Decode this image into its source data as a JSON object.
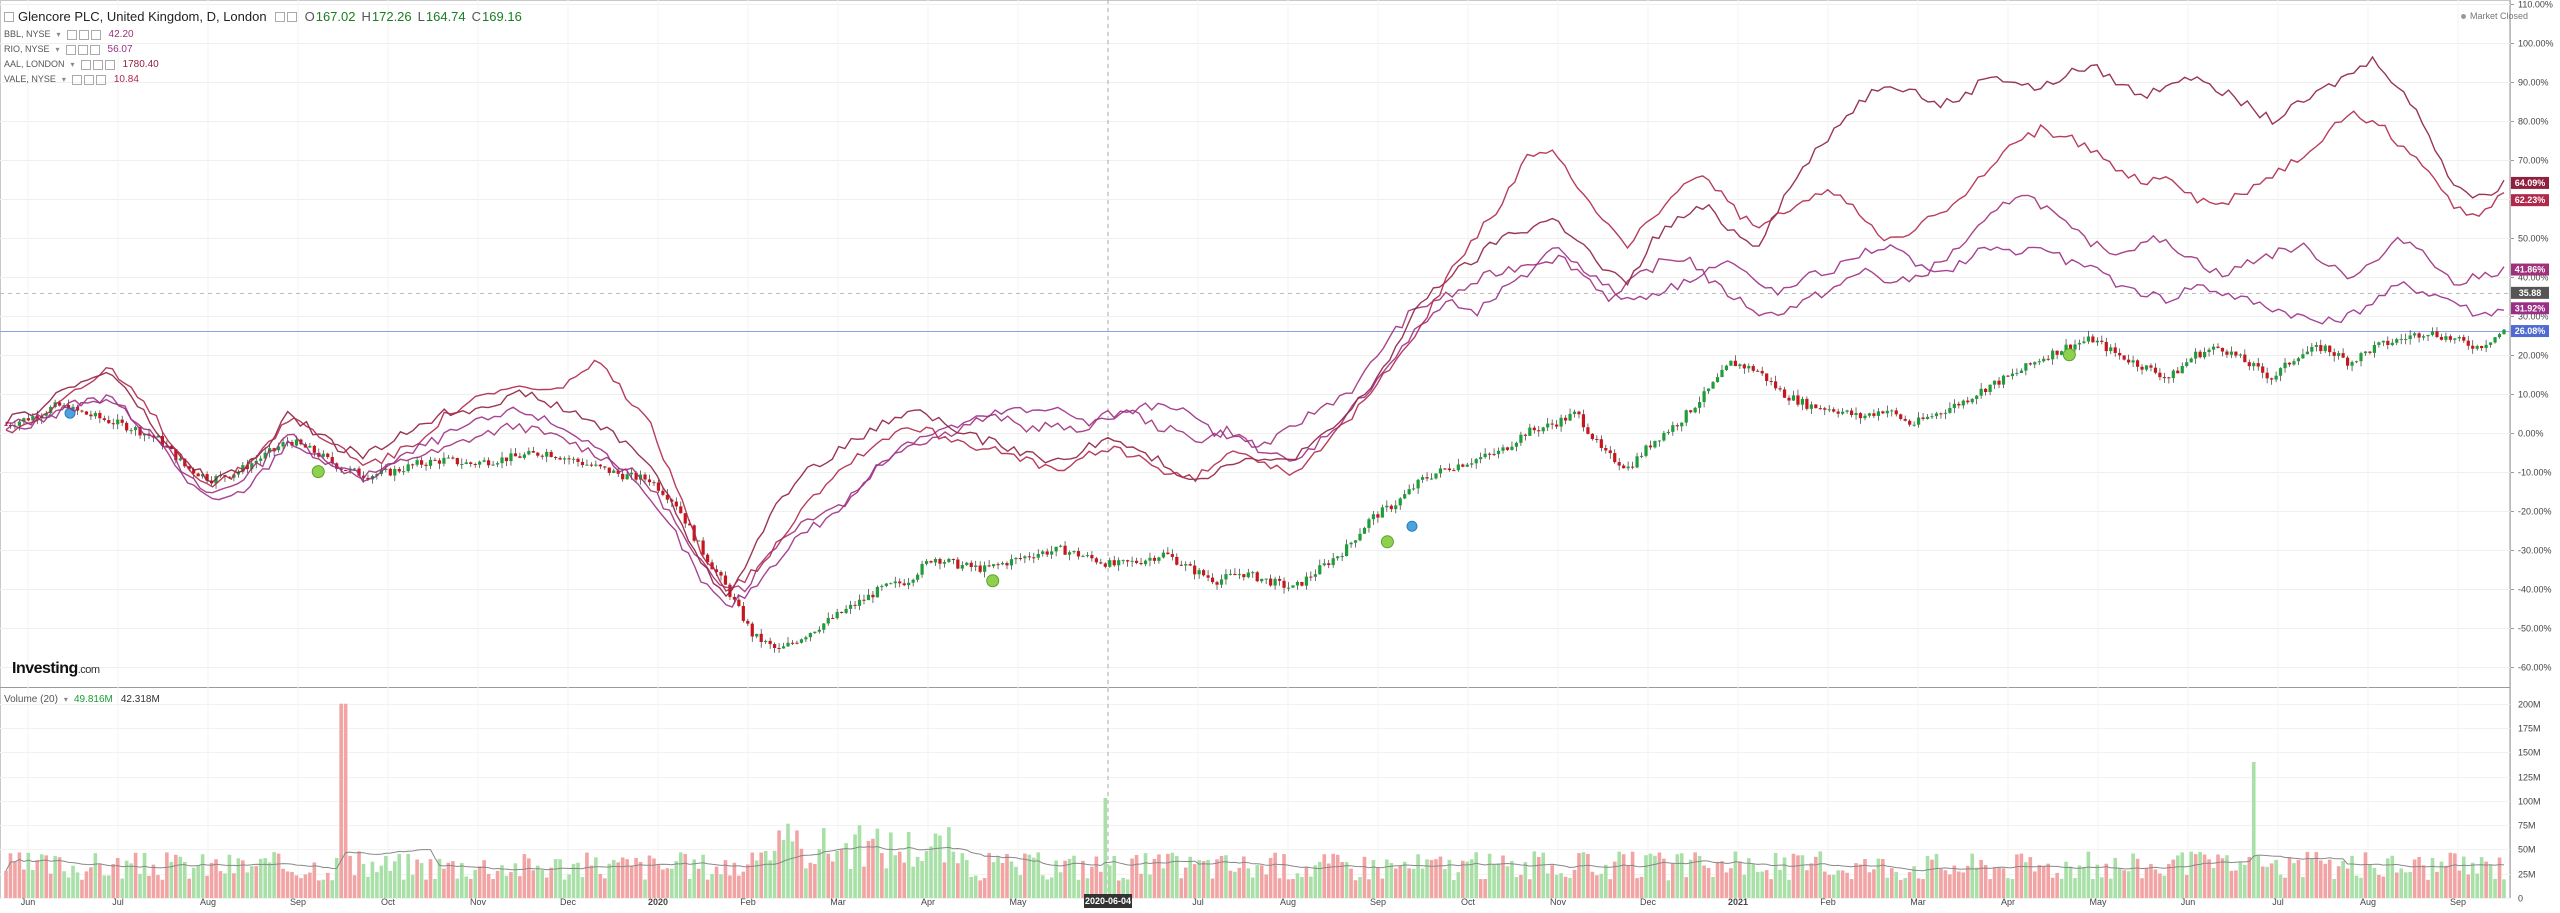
{
  "header": {
    "main_symbol": "Glencore PLC, United Kingdom, D, London",
    "ohlc": [
      {
        "k": "O",
        "v": "167.02"
      },
      {
        "k": "H",
        "v": "172.26"
      },
      {
        "k": "L",
        "v": "164.74"
      },
      {
        "k": "C",
        "v": "169.16"
      }
    ],
    "comparisons": [
      {
        "name": "BBL, NYSE",
        "value": "42.20",
        "color": "#a0307a"
      },
      {
        "name": "RIO, NYSE",
        "value": "56.07",
        "color": "#9b2f88"
      },
      {
        "name": "AAL, LONDON",
        "value": "1780.40",
        "color": "#8e2040"
      },
      {
        "name": "VALE, NYSE",
        "value": "10.84",
        "color": "#b0284a"
      }
    ],
    "market_status": "Market Closed",
    "logo_text": "Investing",
    "logo_suffix": ".com"
  },
  "volume_legend": {
    "name": "Volume (20)",
    "value1": "49.816M",
    "value2": "42.318M"
  },
  "chart_data": [
    {
      "type": "line",
      "subtype": "candlestick-with-comparisons",
      "title": "Glencore PLC, United Kingdom, D, London",
      "x_axis_labels": [
        "Jun",
        "Jul",
        "Aug",
        "Sep",
        "Oct",
        "Nov",
        "Dec",
        "2020",
        "Feb",
        "Mar",
        "Apr",
        "May",
        "2020-06-04",
        "Jul",
        "Aug",
        "Sep",
        "Oct",
        "Nov",
        "Dec",
        "2021",
        "Feb",
        "Mar",
        "Apr",
        "May",
        "Jun",
        "Jul",
        "Aug",
        "Sep"
      ],
      "crosshair_label": "2020-06-04",
      "y_axis_ticks": [
        "110.00%",
        "100.00%",
        "90.00%",
        "80.00%",
        "70.00%",
        "60.00%",
        "50.00%",
        "40.00%",
        "30.00%",
        "20.00%",
        "10.00%",
        "0.00%",
        "-10.00%",
        "-20.00%",
        "-30.00%",
        "-40.00%",
        "-50.00%",
        "-60.00%"
      ],
      "y_range": [
        -65,
        110
      ],
      "y_scale": "percent",
      "price_badges": [
        {
          "label": "64.09%",
          "color": "#8e2040",
          "value": 64.09
        },
        {
          "label": "62.23%",
          "color": "#b0284a",
          "value": 62.23
        },
        {
          "label": "41.86%",
          "color": "#a0307a",
          "value": 41.86
        },
        {
          "label": "35.88",
          "color": "#555555",
          "value": 35.88
        },
        {
          "label": "31.92%",
          "color": "#9b2f88",
          "value": 31.92
        },
        {
          "label": "26.08%",
          "color": "#4f6bd0",
          "value": 26.08
        }
      ],
      "series": [
        {
          "name": "Glencore PLC",
          "kind": "candles",
          "values": [
            2,
            4,
            7,
            5,
            3,
            1,
            -2,
            -9,
            -12,
            -10,
            -6,
            -2,
            -5,
            -9,
            -11,
            -10,
            -8,
            -7,
            -8,
            -7,
            -6,
            -5,
            -7,
            -9,
            -11,
            -12,
            -18,
            -30,
            -40,
            -52,
            -56,
            -52,
            -48,
            -44,
            -40,
            -38,
            -32,
            -34,
            -35,
            -33,
            -31,
            -30,
            -32,
            -34,
            -33,
            -31,
            -35,
            -38,
            -36,
            -38,
            -40,
            -35,
            -30,
            -22,
            -18,
            -12,
            -9,
            -7,
            -5,
            0,
            2,
            5,
            -5,
            -9,
            -2,
            3,
            10,
            18,
            16,
            10,
            7,
            6,
            4,
            6,
            2,
            5,
            8,
            12,
            15,
            19,
            22,
            24,
            20,
            17,
            14,
            20,
            22,
            18,
            14,
            20,
            22,
            18,
            22,
            24,
            26,
            24,
            22,
            26
          ]
        },
        {
          "name": "BBL, NYSE",
          "kind": "line",
          "color": "#a0307a",
          "values": [
            2,
            3,
            6,
            8,
            9,
            4,
            -1,
            -11,
            -16,
            -13,
            -8,
            0,
            -5,
            -9,
            -11,
            -9,
            -6,
            -5,
            -2,
            0,
            2,
            0,
            -2,
            -5,
            -8,
            -12,
            -20,
            -32,
            -38,
            -40,
            -30,
            -24,
            -20,
            -18,
            -10,
            -4,
            -2,
            0,
            3,
            4,
            1,
            2,
            0,
            4,
            6,
            2,
            0,
            -2,
            1,
            -4,
            -1,
            4,
            8,
            12,
            22,
            30,
            34,
            36,
            40,
            42,
            44,
            45,
            40,
            34,
            40,
            44,
            45,
            38,
            34,
            30,
            32,
            35,
            38,
            42,
            38,
            40,
            44,
            50,
            56,
            62,
            58,
            52,
            48,
            46,
            50,
            48,
            44,
            40,
            44,
            46,
            48,
            44,
            40,
            44,
            50,
            46,
            38,
            40,
            42
          ]
        },
        {
          "name": "RIO, NYSE",
          "kind": "line",
          "color": "#9b2f88",
          "values": [
            1,
            2,
            5,
            7,
            9,
            3,
            -3,
            -12,
            -18,
            -16,
            -10,
            -2,
            -6,
            -9,
            -12,
            -8,
            -4,
            -1,
            2,
            4,
            6,
            3,
            0,
            -4,
            -10,
            -18,
            -26,
            -38,
            -45,
            -40,
            -32,
            -25,
            -22,
            -15,
            -8,
            -2,
            0,
            2,
            4,
            6,
            5,
            7,
            2,
            4,
            6,
            8,
            4,
            0,
            -2,
            -5,
            -8,
            -2,
            4,
            12,
            20,
            28,
            34,
            30,
            36,
            40,
            48,
            44,
            38,
            34,
            36,
            38,
            42,
            44,
            38,
            36,
            40,
            42,
            46,
            48,
            44,
            40,
            44,
            48,
            46,
            48,
            44,
            42,
            38,
            36,
            34,
            38,
            36,
            34,
            32,
            30,
            28,
            30,
            34,
            38,
            36,
            34,
            30,
            32
          ]
        },
        {
          "name": "AAL, LONDON",
          "kind": "line",
          "color": "#8e2040",
          "values": [
            3,
            5,
            10,
            13,
            16,
            8,
            -1,
            -8,
            -12,
            -10,
            -5,
            5,
            0,
            -4,
            -6,
            -2,
            2,
            5,
            6,
            8,
            10,
            8,
            5,
            2,
            -2,
            -8,
            -20,
            -34,
            -42,
            -30,
            -18,
            -10,
            -6,
            -2,
            2,
            6,
            4,
            0,
            -2,
            -4,
            -6,
            -8,
            -3,
            -2,
            -5,
            -8,
            -12,
            -10,
            -6,
            -8,
            -6,
            -2,
            4,
            12,
            22,
            34,
            40,
            44,
            50,
            52,
            55,
            50,
            42,
            38,
            50,
            55,
            58,
            52,
            48,
            60,
            70,
            78,
            85,
            90,
            88,
            84,
            86,
            92,
            90,
            88,
            92,
            94,
            90,
            86,
            90,
            92,
            88,
            84,
            80,
            84,
            88,
            92,
            96,
            88,
            78,
            64,
            60,
            64
          ]
        },
        {
          "name": "VALE, NYSE",
          "kind": "line",
          "color": "#b0284a",
          "values": [
            0,
            3,
            8,
            12,
            16,
            10,
            2,
            -8,
            -14,
            -10,
            -4,
            4,
            0,
            -4,
            -8,
            -6,
            -2,
            4,
            8,
            10,
            12,
            10,
            14,
            18,
            10,
            2,
            -14,
            -30,
            -40,
            -36,
            -28,
            -18,
            -12,
            -6,
            -2,
            2,
            0,
            -2,
            -4,
            -6,
            -8,
            -10,
            -6,
            -4,
            -6,
            -10,
            -12,
            -8,
            -4,
            -8,
            -10,
            -4,
            2,
            10,
            20,
            28,
            40,
            50,
            58,
            70,
            72,
            64,
            55,
            48,
            56,
            62,
            66,
            58,
            52,
            56,
            60,
            62,
            56,
            50,
            52,
            56,
            60,
            68,
            74,
            78,
            76,
            72,
            68,
            64,
            66,
            60,
            58,
            62,
            66,
            70,
            76,
            82,
            80,
            74,
            68,
            58,
            56,
            62
          ]
        }
      ]
    },
    {
      "type": "bar",
      "title": "Volume (20)",
      "y_axis_ticks": [
        "200M",
        "175M",
        "150M",
        "125M",
        "100M",
        "75M",
        "50M",
        "25M",
        "0"
      ],
      "ylim": [
        0,
        210
      ],
      "unit": "M",
      "peaks": [
        {
          "position": 0.135,
          "value": 200
        },
        {
          "position": 0.9,
          "value": 140
        },
        {
          "position": 0.44,
          "value": 103
        }
      ]
    }
  ]
}
